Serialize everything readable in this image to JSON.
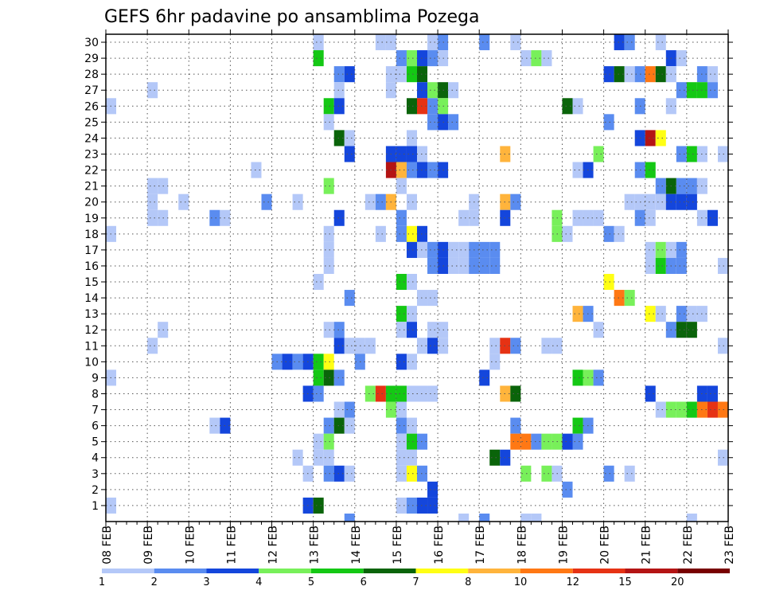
{
  "chart_data": {
    "type": "heatmap",
    "title": "GEFS 6hr padavine po ansamblima Pozega",
    "xlabel": "",
    "ylabel": "",
    "x_tick_labels": [
      "08 FEB",
      "09 FEB",
      "10 FEB",
      "11 FEB",
      "12 FEB",
      "13 FEB",
      "14 FEB",
      "15 FEB",
      "16 FEB",
      "17 FEB",
      "18 FEB",
      "19 FEB",
      "20 FEB",
      "21 FEB",
      "22 FEB",
      "23 FEB"
    ],
    "y_tick_labels": [
      "1",
      "2",
      "3",
      "4",
      "5",
      "6",
      "7",
      "8",
      "9",
      "10",
      "11",
      "12",
      "13",
      "14",
      "15",
      "16",
      "17",
      "18",
      "19",
      "20",
      "21",
      "22",
      "23",
      "24",
      "25",
      "26",
      "27",
      "28",
      "29",
      "30"
    ],
    "ylim": [
      1,
      30
    ],
    "steps_per_day": 4,
    "grid": true,
    "legend": {
      "position": "bottom",
      "thresholds": [
        "1",
        "2",
        "3",
        "4",
        "5",
        "6",
        "7",
        "8",
        "10",
        "12",
        "15",
        "20"
      ],
      "colors": [
        "#b4c8f8",
        "#5a8cf0",
        "#1446dc",
        "#78f05a",
        "#14c814",
        "#0a640a",
        "#ffff14",
        "#ffb43c",
        "#ff7814",
        "#e63214",
        "#b41414",
        "#780000"
      ]
    },
    "cells": [
      {
        "member": 30,
        "t": [
          20,
          26,
          27,
          31,
          32,
          36,
          39,
          49,
          50,
          53
        ],
        "l": [
          1,
          1,
          1,
          1,
          2,
          2,
          1,
          3,
          2,
          1
        ]
      },
      {
        "member": 29,
        "t": [
          20,
          28,
          29,
          30,
          31,
          32,
          40,
          41,
          42,
          54,
          55
        ],
        "l": [
          5,
          2,
          4,
          3,
          2,
          1,
          1,
          4,
          1,
          3,
          1
        ]
      },
      {
        "member": 28,
        "t": [
          22,
          23,
          27,
          28,
          29,
          30,
          48,
          49,
          50,
          51,
          52,
          53,
          54,
          57,
          58
        ],
        "l": [
          2,
          3,
          1,
          1,
          5,
          6,
          3,
          6,
          1,
          2,
          9,
          6,
          1,
          2,
          1
        ]
      },
      {
        "member": 27,
        "t": [
          4,
          22,
          27,
          30,
          31,
          32,
          33,
          55,
          56,
          57,
          58
        ],
        "l": [
          1,
          1,
          1,
          3,
          4,
          6,
          1,
          2,
          5,
          5,
          2
        ]
      },
      {
        "member": 26,
        "t": [
          0,
          21,
          22,
          29,
          30,
          31,
          32,
          44,
          45,
          51,
          54
        ],
        "l": [
          1,
          5,
          3,
          6,
          10,
          2,
          4,
          6,
          1,
          2,
          1
        ]
      },
      {
        "member": 25,
        "t": [
          21,
          31,
          32,
          33,
          48
        ],
        "l": [
          1,
          2,
          3,
          2,
          2
        ]
      },
      {
        "member": 24,
        "t": [
          22,
          23,
          29,
          51,
          52,
          53
        ],
        "l": [
          6,
          1,
          1,
          3,
          11,
          7
        ]
      },
      {
        "member": 23,
        "t": [
          23,
          27,
          28,
          29,
          30,
          38,
          47,
          55,
          56,
          57,
          59
        ],
        "l": [
          3,
          3,
          3,
          3,
          1,
          8,
          4,
          2,
          5,
          1,
          1
        ]
      },
      {
        "member": 22,
        "t": [
          14,
          27,
          28,
          29,
          30,
          31,
          32,
          45,
          46,
          51,
          52
        ],
        "l": [
          1,
          11,
          8,
          2,
          3,
          2,
          3,
          1,
          3,
          2,
          5
        ]
      },
      {
        "member": 21,
        "t": [
          4,
          5,
          21,
          28,
          53,
          54,
          55,
          56,
          57
        ],
        "l": [
          1,
          1,
          4,
          1,
          2,
          6,
          2,
          2,
          1
        ]
      },
      {
        "member": 20,
        "t": [
          4,
          7,
          15,
          18,
          25,
          26,
          27,
          29,
          35,
          38,
          39,
          50,
          51,
          52,
          53,
          54,
          55,
          56
        ],
        "l": [
          1,
          1,
          2,
          1,
          1,
          2,
          8,
          1,
          1,
          8,
          2,
          1,
          1,
          1,
          1,
          3,
          3,
          3
        ]
      },
      {
        "member": 19,
        "t": [
          4,
          5,
          10,
          11,
          22,
          28,
          34,
          35,
          38,
          43,
          45,
          46,
          47,
          51,
          52,
          57,
          58
        ],
        "l": [
          1,
          1,
          2,
          1,
          3,
          2,
          1,
          1,
          3,
          4,
          1,
          1,
          1,
          2,
          1,
          1,
          3
        ]
      },
      {
        "member": 18,
        "t": [
          0,
          21,
          26,
          28,
          29,
          30,
          43,
          44,
          48,
          49
        ],
        "l": [
          1,
          1,
          1,
          2,
          7,
          3,
          4,
          1,
          2,
          1
        ]
      },
      {
        "member": 17,
        "t": [
          21,
          29,
          30,
          31,
          32,
          33,
          34,
          35,
          36,
          37,
          52,
          53,
          54,
          55
        ],
        "l": [
          1,
          3,
          1,
          2,
          3,
          1,
          1,
          2,
          2,
          2,
          1,
          4,
          1,
          2
        ]
      },
      {
        "member": 16,
        "t": [
          21,
          31,
          32,
          33,
          34,
          35,
          36,
          37,
          52,
          53,
          54,
          55,
          59
        ],
        "l": [
          1,
          2,
          3,
          1,
          1,
          2,
          2,
          2,
          1,
          5,
          2,
          2,
          1
        ]
      },
      {
        "member": 15,
        "t": [
          20,
          28,
          29,
          48
        ],
        "l": [
          1,
          5,
          1,
          7
        ]
      },
      {
        "member": 14,
        "t": [
          23,
          30,
          31,
          49,
          50
        ],
        "l": [
          2,
          1,
          1,
          9,
          4
        ]
      },
      {
        "member": 13,
        "t": [
          28,
          29,
          45,
          46,
          52,
          53,
          55,
          56,
          57
        ],
        "l": [
          5,
          1,
          8,
          2,
          7,
          1,
          2,
          1,
          1
        ]
      },
      {
        "member": 12,
        "t": [
          5,
          21,
          22,
          28,
          29,
          31,
          32,
          47,
          54,
          55,
          56
        ],
        "l": [
          1,
          1,
          2,
          1,
          3,
          1,
          1,
          1,
          2,
          6,
          6
        ]
      },
      {
        "member": 11,
        "t": [
          4,
          22,
          23,
          24,
          25,
          30,
          31,
          32,
          37,
          38,
          39,
          42,
          43,
          59
        ],
        "l": [
          1,
          3,
          1,
          1,
          1,
          1,
          3,
          1,
          1,
          10,
          2,
          1,
          1,
          1
        ]
      },
      {
        "member": 10,
        "t": [
          16,
          17,
          18,
          19,
          20,
          21,
          24,
          28,
          29,
          37
        ],
        "l": [
          2,
          3,
          2,
          3,
          5,
          7,
          2,
          3,
          1,
          1
        ]
      },
      {
        "member": 9,
        "t": [
          0,
          20,
          21,
          22,
          36,
          45,
          46,
          47
        ],
        "l": [
          1,
          5,
          6,
          2,
          3,
          5,
          4,
          2
        ]
      },
      {
        "member": 8,
        "t": [
          19,
          20,
          25,
          26,
          27,
          28,
          29,
          30,
          31,
          38,
          39,
          52,
          57,
          58
        ],
        "l": [
          3,
          2,
          4,
          10,
          5,
          5,
          1,
          1,
          1,
          8,
          6,
          3,
          3,
          3
        ]
      },
      {
        "member": 7,
        "t": [
          22,
          23,
          27,
          28,
          53,
          54,
          55,
          56,
          57,
          58,
          59
        ],
        "l": [
          1,
          2,
          4,
          1,
          1,
          4,
          4,
          5,
          9,
          10,
          9
        ]
      },
      {
        "member": 6,
        "t": [
          10,
          11,
          21,
          22,
          23,
          28,
          29,
          39,
          45,
          46
        ],
        "l": [
          1,
          3,
          2,
          6,
          1,
          2,
          1,
          2,
          5,
          2
        ]
      },
      {
        "member": 5,
        "t": [
          20,
          21,
          28,
          29,
          30,
          39,
          40,
          41,
          42,
          43,
          44,
          45
        ],
        "l": [
          1,
          4,
          1,
          5,
          2,
          9,
          9,
          2,
          4,
          4,
          3,
          2
        ]
      },
      {
        "member": 4,
        "t": [
          18,
          20,
          21,
          28,
          29,
          37,
          38,
          59
        ],
        "l": [
          1,
          1,
          1,
          1,
          1,
          6,
          3,
          1
        ]
      },
      {
        "member": 3,
        "t": [
          19,
          21,
          22,
          23,
          28,
          29,
          30,
          40,
          42,
          43,
          48,
          50
        ],
        "l": [
          1,
          2,
          3,
          1,
          1,
          7,
          2,
          4,
          4,
          1,
          2,
          1
        ]
      },
      {
        "member": 2,
        "t": [
          31,
          44
        ],
        "l": [
          3,
          2
        ]
      },
      {
        "member": 1,
        "t": [
          0,
          19,
          20,
          28,
          29,
          30,
          31
        ],
        "l": [
          1,
          3,
          6,
          1,
          2,
          3,
          3
        ]
      },
      {
        "member": 0,
        "t": [
          23,
          34,
          36,
          40,
          41,
          56
        ],
        "l": [
          2,
          1,
          2,
          1,
          1,
          1
        ]
      }
    ]
  }
}
